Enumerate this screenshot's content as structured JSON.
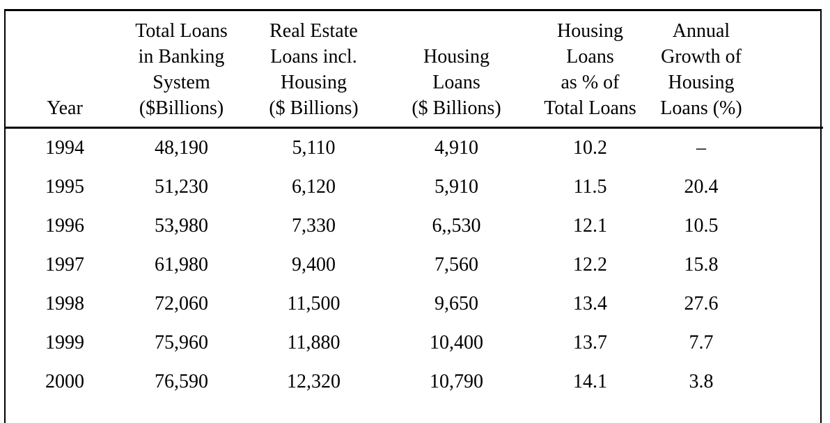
{
  "table": {
    "columns": [
      {
        "id": "year",
        "label": "Year"
      },
      {
        "id": "total",
        "label": "Total Loans\nin Banking\nSystem\n($Billions)"
      },
      {
        "id": "re",
        "label": "Real Estate\nLoans incl.\nHousing\n($ Billions)"
      },
      {
        "id": "housing",
        "label": "Housing\nLoans\n($ Billions)"
      },
      {
        "id": "pct",
        "label": "Housing\nLoans\nas % of\nTotal Loans"
      },
      {
        "id": "growth",
        "label": "Annual\nGrowth of\nHousing\nLoans (%)"
      }
    ],
    "rows": [
      [
        "1994",
        "48,190",
        "5,110",
        "4,910",
        "10.2",
        "–"
      ],
      [
        "1995",
        "51,230",
        "6,120",
        "5,910",
        "11.5",
        "20.4"
      ],
      [
        "1996",
        "53,980",
        "7,330",
        "6,,530",
        "12.1",
        "10.5"
      ],
      [
        "1997",
        "61,980",
        "9,400",
        "7,560",
        "12.2",
        "15.8"
      ],
      [
        "1998",
        "72,060",
        "11,500",
        "9,650",
        "13.4",
        "27.6"
      ],
      [
        "1999",
        "75,960",
        "11,880",
        "10,400",
        "13.7",
        "7.7"
      ],
      [
        "2000",
        "76,590",
        "12,320",
        "10,790",
        "14.1",
        "3.8"
      ]
    ],
    "colors": {
      "border": "#000000",
      "text": "#000000",
      "background": "#ffffff"
    }
  }
}
